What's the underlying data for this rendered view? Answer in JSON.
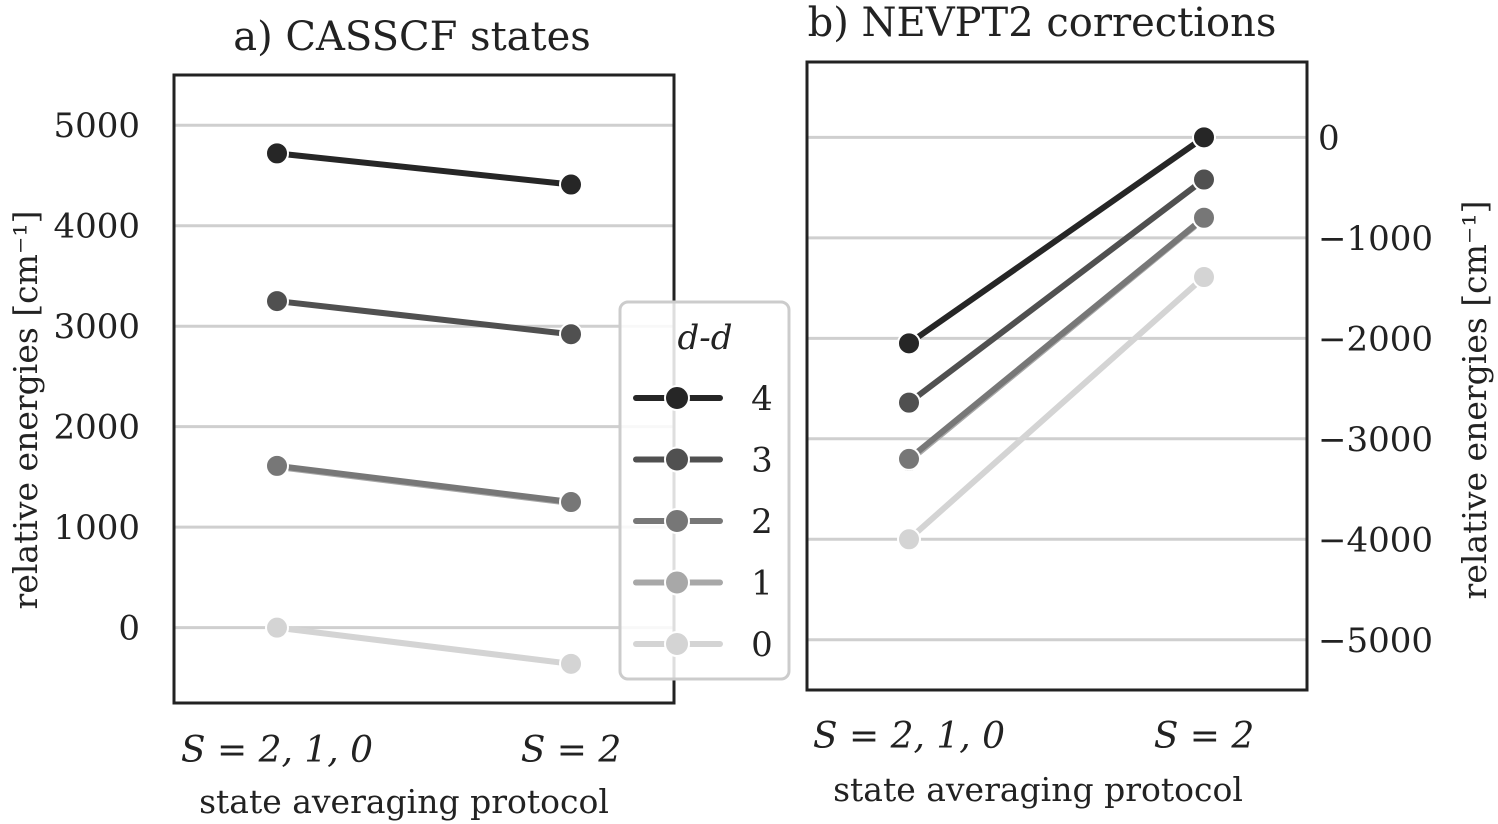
{
  "chart_data": [
    {
      "type": "line",
      "title": "a) CASSCF states",
      "xlabel": "state averaging protocol",
      "ylabel": "relative energies [cm⁻¹]",
      "categories": [
        "S = 2, 1, 0",
        "S = 2"
      ],
      "ylim": [
        -750,
        5500
      ],
      "yticks": [
        0,
        1000,
        2000,
        3000,
        4000,
        5000
      ],
      "yticklabels": [
        "0",
        "1000",
        "2000",
        "3000",
        "4000",
        "5000"
      ],
      "y_axis_side": "left",
      "grid": true,
      "series": [
        {
          "name": "4",
          "values": [
            4720,
            4410
          ],
          "color": "#262626"
        },
        {
          "name": "3",
          "values": [
            3250,
            2920
          ],
          "color": "#505050"
        },
        {
          "name": "2",
          "values": [
            1610,
            1250
          ],
          "color": "#777777"
        },
        {
          "name": "1",
          "values": [
            1600,
            1240
          ],
          "color": "#a8a8a8"
        },
        {
          "name": "0",
          "values": [
            0,
            -360
          ],
          "color": "#d4d4d4"
        }
      ]
    },
    {
      "type": "line",
      "title": "b) NEVPT2 corrections",
      "xlabel": "state averaging protocol",
      "ylabel": "relative energies [cm⁻¹]",
      "categories": [
        "S = 2, 1, 0",
        "S = 2"
      ],
      "ylim": [
        -5500,
        750
      ],
      "yticks": [
        0,
        -1000,
        -2000,
        -3000,
        -4000,
        -5000
      ],
      "yticklabels": [
        "0",
        "−1000",
        "−2000",
        "−3000",
        "−4000",
        "−5000"
      ],
      "y_axis_side": "right",
      "grid": true,
      "series": [
        {
          "name": "4",
          "values": [
            -2050,
            0
          ],
          "color": "#262626"
        },
        {
          "name": "3",
          "values": [
            -2640,
            -420
          ],
          "color": "#505050"
        },
        {
          "name": "2",
          "values": [
            -3200,
            -800
          ],
          "color": "#777777"
        },
        {
          "name": "1",
          "values": [
            -3220,
            -810
          ],
          "color": "#a8a8a8"
        },
        {
          "name": "0",
          "values": [
            -4000,
            -1390
          ],
          "color": "#d4d4d4"
        }
      ]
    }
  ],
  "legend": {
    "title": "d-d",
    "placement": "between panels",
    "entries": [
      {
        "label": "4",
        "color": "#262626"
      },
      {
        "label": "3",
        "color": "#505050"
      },
      {
        "label": "2",
        "color": "#777777"
      },
      {
        "label": "1",
        "color": "#a8a8a8"
      },
      {
        "label": "0",
        "color": "#d4d4d4"
      }
    ]
  }
}
